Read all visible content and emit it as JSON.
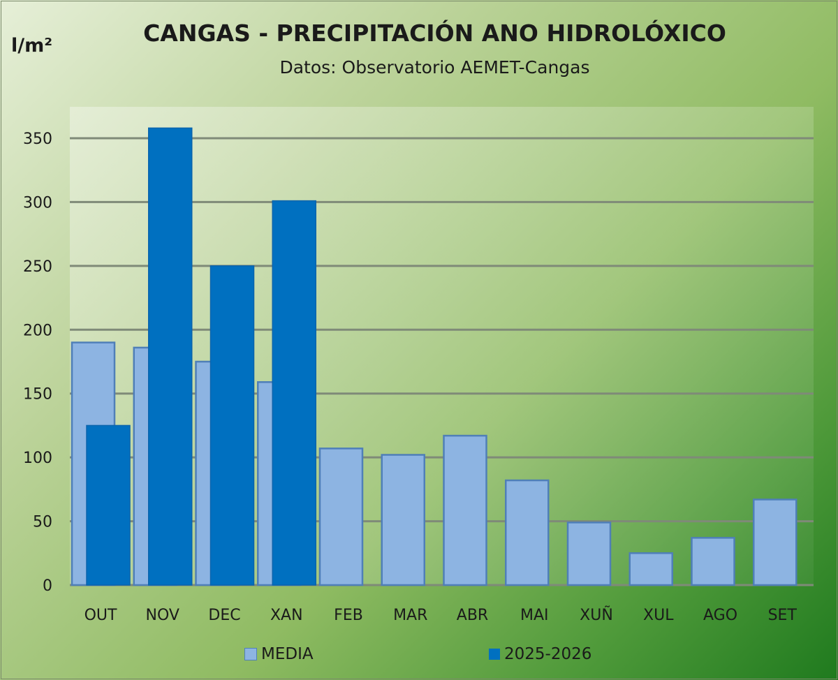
{
  "chart_data": {
    "type": "bar",
    "title": "CANGAS - PRECIPITACIÓN ANO HIDROLÓXICO",
    "subtitle": "Datos: Observatorio AEMET-Cangas",
    "ylabel": "l/m²",
    "xlabel": "",
    "ylim": [
      0,
      350
    ],
    "yticks": [
      0,
      50,
      100,
      150,
      200,
      250,
      300,
      350
    ],
    "grid": true,
    "legend_position": "bottom",
    "categories": [
      "OUT",
      "NOV",
      "DEC",
      "XAN",
      "FEB",
      "MAR",
      "ABR",
      "MAI",
      "XUÑ",
      "XUL",
      "AGO",
      "SET"
    ],
    "series": [
      {
        "name": "MEDIA",
        "color": "#8db4e2",
        "values": [
          190,
          186,
          175,
          159,
          107,
          102,
          117,
          82,
          49,
          25,
          37,
          67
        ]
      },
      {
        "name": "2025-2026",
        "color": "#0070c0",
        "values": [
          125,
          358,
          250,
          301,
          null,
          null,
          null,
          null,
          null,
          null,
          null,
          null
        ]
      }
    ]
  }
}
